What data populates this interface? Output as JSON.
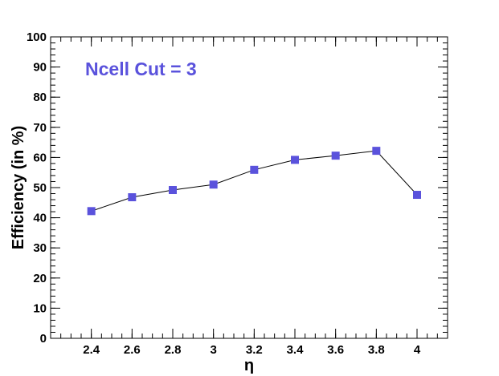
{
  "chart_data": {
    "type": "line",
    "title": "",
    "annotation": "Ncell Cut = 3",
    "xlabel": "η",
    "ylabel": "Efficiency (in %)",
    "xlim": [
      2.2,
      4.15
    ],
    "ylim": [
      0,
      100
    ],
    "x_ticks": [
      "2.4",
      "2.6",
      "2.8",
      "3",
      "3.2",
      "3.4",
      "3.6",
      "3.8",
      "4"
    ],
    "y_ticks": [
      "0",
      "10",
      "20",
      "30",
      "40",
      "50",
      "60",
      "70",
      "80",
      "90",
      "100"
    ],
    "grid": false,
    "legend": "none",
    "marker_color": "#5a52dc",
    "line_color": "#000000",
    "annotation_color": "#5a52dc",
    "series": [
      {
        "marker": "square",
        "x": [
          2.4,
          2.6,
          2.8,
          3.0,
          3.2,
          3.4,
          3.6,
          3.8,
          4.0
        ],
        "y": [
          42.2,
          46.8,
          49.2,
          51.0,
          55.9,
          59.2,
          60.6,
          62.2,
          47.6
        ]
      }
    ]
  }
}
